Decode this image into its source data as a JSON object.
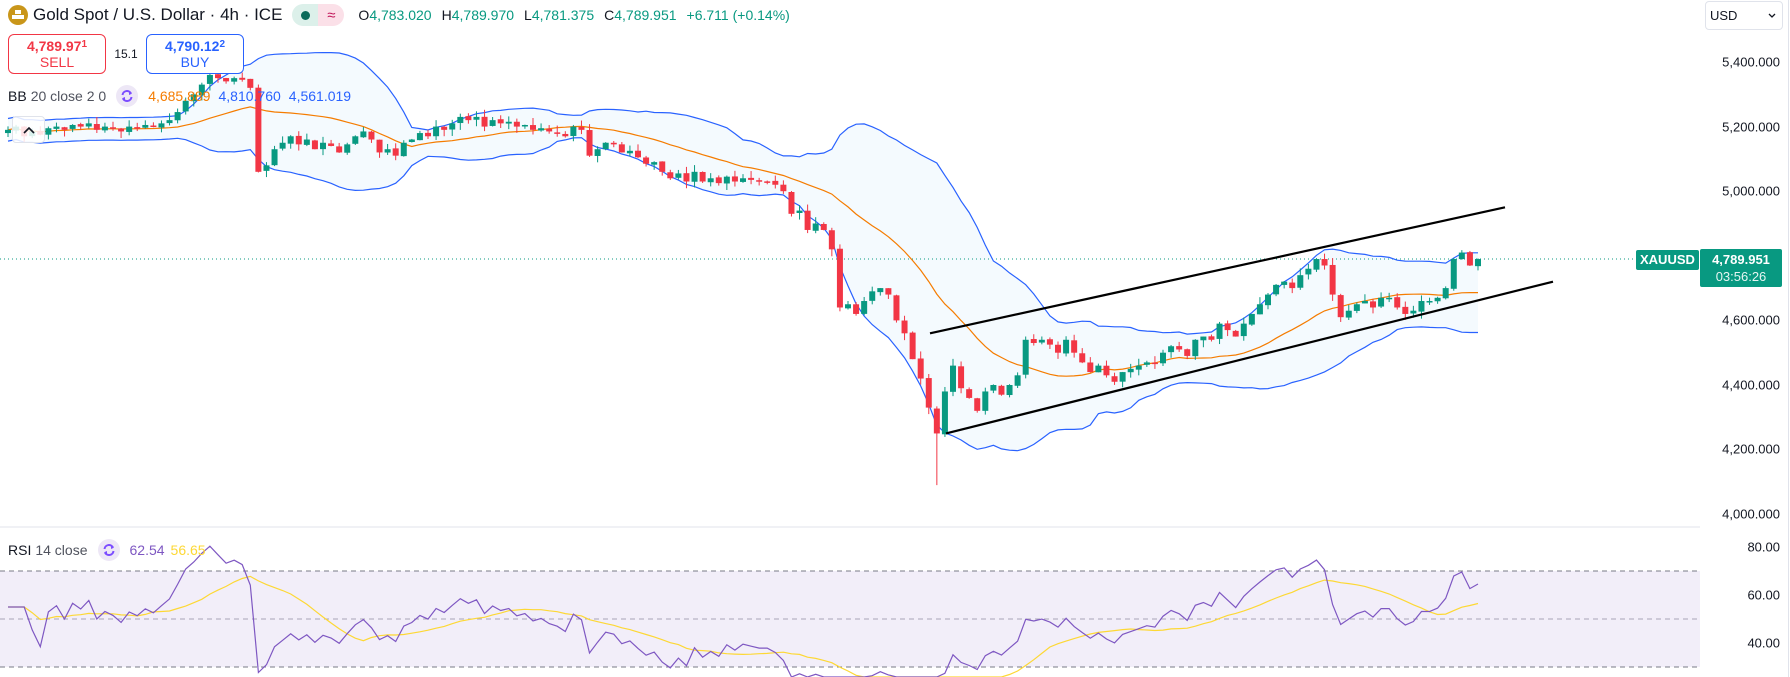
{
  "header": {
    "title": "Gold Spot / U.S. Dollar · 4h · ICE",
    "icon": "gold-bars-icon",
    "status": {
      "market": "open-dot-icon",
      "delay": "approx-icon",
      "delay_glyph": "≈"
    },
    "ohlc": {
      "open_label": "O",
      "open": "4,783.020",
      "high_label": "H",
      "high": "4,789.970",
      "low_label": "L",
      "low": "4,781.375",
      "close_label": "C",
      "close": "4,789.951",
      "change": "+6.711 (+0.14%)"
    }
  },
  "trade": {
    "sell_price": "4,789.97",
    "sell_price_small": "1",
    "sell_label": "SELL",
    "spread": "15.1",
    "buy_price": "4,790.12",
    "buy_price_small": "2",
    "buy_label": "BUY"
  },
  "bollinger": {
    "name": "BB",
    "params": "20 close 2 0",
    "basis": "4,685.889",
    "upper": "4,810.760",
    "lower": "4,561.019",
    "colors": {
      "basis": "#f57c00",
      "upper": "#2962ff",
      "lower": "#2962ff"
    }
  },
  "rsi": {
    "name": "RSI",
    "params": "14 close",
    "value": "62.54",
    "ma": "56.65",
    "colors": {
      "rsi": "#7e57c2",
      "ma": "#fdd835"
    }
  },
  "price_axis": {
    "currency": "USD",
    "labels": [
      "5,400.000",
      "5,200.000",
      "5,000.000",
      "4,600.000",
      "4,400.000",
      "4,200.000",
      "4,000.000"
    ],
    "last_symbol": "XAUUSD",
    "last_price": "4,789.951",
    "countdown": "03:56:26"
  },
  "rsi_axis": {
    "labels": [
      "80.00",
      "60.00",
      "40.00"
    ]
  },
  "colors": {
    "up": "#089981",
    "down": "#f23645",
    "channel": "#000000"
  },
  "chart_data": {
    "type": "candlestick",
    "title": "Gold Spot / U.S. Dollar · 4h · ICE",
    "xlabel": "",
    "ylabel": "USD",
    "ylim": [
      4000,
      5450
    ],
    "y_ticks": [
      4000,
      4200,
      4400,
      4600,
      5000,
      5200,
      5400
    ],
    "last_price": 4789.951,
    "indicators": [
      "Bollinger Bands (20, close, 2)",
      "RSI (14, close) with MA"
    ],
    "rsi_ylim": [
      25,
      85
    ],
    "rsi_levels": [
      70,
      50,
      30
    ],
    "channel_lines": [
      {
        "name": "upper",
        "from": [
          930,
          4560
        ],
        "to": [
          1505,
          4950
        ]
      },
      {
        "name": "lower",
        "from": [
          946,
          4250
        ],
        "to": [
          1553,
          4720
        ]
      }
    ],
    "closes": [
      5190,
      5200,
      5170,
      5185,
      5175,
      5195,
      5200,
      5190,
      5205,
      5200,
      5210,
      5190,
      5200,
      5195,
      5185,
      5200,
      5195,
      5205,
      5200,
      5210,
      5220,
      5245,
      5280,
      5300,
      5330,
      5360,
      5350,
      5340,
      5350,
      5345,
      5320,
      5060,
      5080,
      5130,
      5150,
      5170,
      5145,
      5160,
      5130,
      5150,
      5140,
      5120,
      5145,
      5170,
      5185,
      5160,
      5120,
      5130,
      5110,
      5150,
      5160,
      5180,
      5170,
      5200,
      5190,
      5210,
      5230,
      5220,
      5230,
      5200,
      5220,
      5210,
      5215,
      5200,
      5205,
      5190,
      5195,
      5185,
      5180,
      5170,
      5200,
      5190,
      5110,
      5130,
      5150,
      5145,
      5120,
      5125,
      5105,
      5085,
      5090,
      5060,
      5040,
      5055,
      5030,
      5060,
      5030,
      5040,
      5025,
      5045,
      5030,
      5040,
      5035,
      5030,
      5030,
      5020,
      5000,
      4930,
      4940,
      4880,
      4900,
      4880,
      4820,
      4640,
      4650,
      4620,
      4660,
      4690,
      4700,
      4680,
      4600,
      4560,
      4480,
      4420,
      4330,
      4250,
      4380,
      4460,
      4390,
      4360,
      4320,
      4380,
      4400,
      4370,
      4400,
      4430,
      4540,
      4530,
      4540,
      4525,
      4500,
      4540,
      4500,
      4470,
      4440,
      4460,
      4430,
      4410,
      4440,
      4450,
      4460,
      4470,
      4465,
      4500,
      4520,
      4510,
      4490,
      4540,
      4550,
      4540,
      4590,
      4570,
      4550,
      4590,
      4620,
      4650,
      4680,
      4710,
      4720,
      4700,
      4740,
      4760,
      4790,
      4770,
      4680,
      4610,
      4630,
      4650,
      4660,
      4640,
      4670,
      4670,
      4640,
      4620,
      4630,
      4660,
      4660,
      4670,
      4700,
      4790,
      4810,
      4770,
      4790
    ]
  }
}
